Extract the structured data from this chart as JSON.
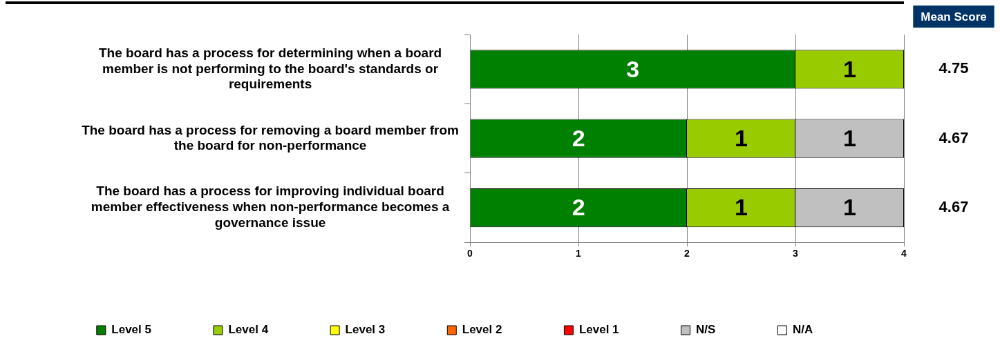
{
  "chart_data": {
    "type": "bar",
    "orientation": "horizontal",
    "stacked": true,
    "categories": [
      "The board has a process for determining when a board member is not performing to the board's standards or requirements",
      "The board has a process for removing a board member from the board for non-performance",
      "The board has a process for improving individual board member effectiveness when non-performance becomes a governance issue"
    ],
    "series": [
      {
        "name": "Level 5",
        "color": "#008000",
        "values": [
          3,
          2,
          2
        ],
        "value_labels": [
          "3",
          "2",
          "2"
        ]
      },
      {
        "name": "Level 4",
        "color": "#99cc00",
        "values": [
          1,
          1,
          1
        ],
        "value_labels": [
          "1",
          "1",
          "1"
        ]
      },
      {
        "name": "Level 3",
        "color": "#ffff00",
        "values": [
          0,
          0,
          0
        ],
        "value_labels": [
          null,
          null,
          null
        ]
      },
      {
        "name": "Level 2",
        "color": "#ff6600",
        "values": [
          0,
          0,
          0
        ],
        "value_labels": [
          null,
          null,
          null
        ]
      },
      {
        "name": "Level 1",
        "color": "#ff0000",
        "values": [
          0,
          0,
          0
        ],
        "value_labels": [
          null,
          null,
          null
        ]
      },
      {
        "name": "N/S",
        "color": "#c0c0c0",
        "values": [
          0,
          1,
          1
        ],
        "value_labels": [
          null,
          "1",
          "1"
        ]
      },
      {
        "name": "N/A",
        "color": "#ffffff",
        "values": [
          0,
          0,
          0
        ],
        "value_labels": [
          null,
          null,
          null
        ]
      }
    ],
    "xlim": [
      0,
      4
    ],
    "xticks": [
      0,
      1,
      2,
      3,
      4
    ],
    "grid": "x",
    "legend": "bottom",
    "annotations": [
      "Mean Score",
      "4.75",
      "4.67",
      "4.67"
    ]
  }
}
